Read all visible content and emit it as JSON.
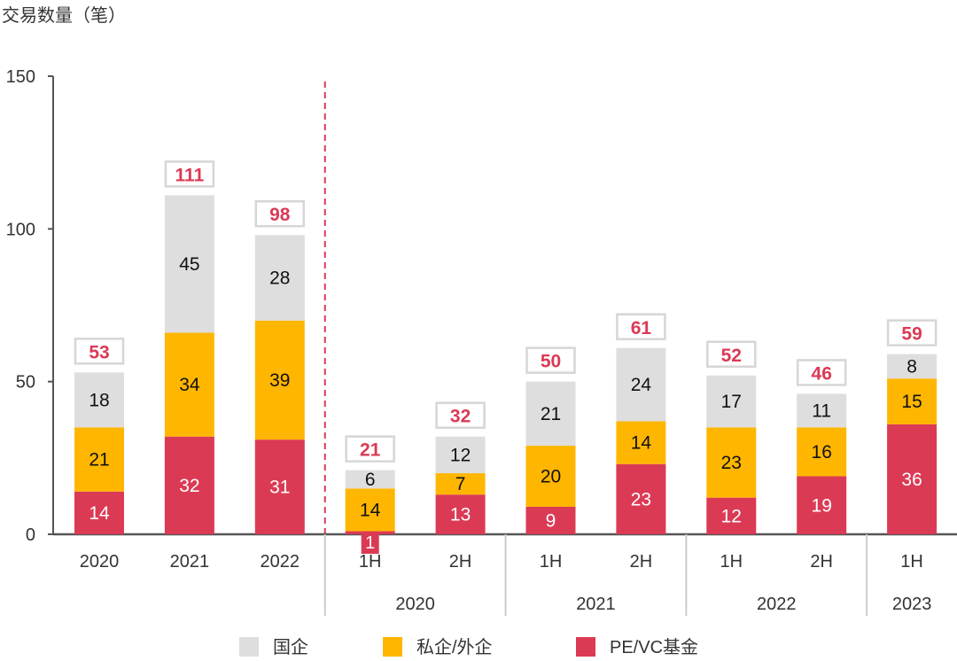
{
  "chart_data": {
    "type": "bar",
    "stacked": true,
    "ylabel": "交易数量（笔）",
    "ylim": [
      0,
      150
    ],
    "yticks": [
      0,
      50,
      100,
      150
    ],
    "grid": false,
    "legend_placement": "bottom",
    "categories": [
      "2020",
      "2021",
      "2022",
      "1H",
      "2H",
      "1H",
      "2H",
      "1H",
      "2H",
      "1H"
    ],
    "groups": [
      {
        "label": "2020",
        "span": [
          3,
          4
        ]
      },
      {
        "label": "2021",
        "span": [
          5,
          6
        ]
      },
      {
        "label": "2022",
        "span": [
          7,
          8
        ]
      },
      {
        "label": "2023",
        "span": [
          9,
          9
        ]
      }
    ],
    "series": [
      {
        "name": "PE/VC基金",
        "color": "#DB3A55",
        "values": [
          14,
          32,
          31,
          1,
          13,
          9,
          23,
          12,
          19,
          36
        ]
      },
      {
        "name": "私企/外企",
        "color": "#FFB600",
        "values": [
          21,
          34,
          39,
          14,
          7,
          20,
          14,
          23,
          16,
          15
        ]
      },
      {
        "name": "国企",
        "color": "#DEDEDE",
        "values": [
          18,
          45,
          28,
          6,
          12,
          21,
          24,
          17,
          11,
          8
        ]
      }
    ],
    "totals": [
      53,
      111,
      98,
      21,
      32,
      50,
      61,
      52,
      46,
      59
    ],
    "legend_order": [
      "国企",
      "私企/外企",
      "PE/VC基金"
    ],
    "total_label_color": "#DB3A55",
    "divider_color": "#DB3A55"
  }
}
